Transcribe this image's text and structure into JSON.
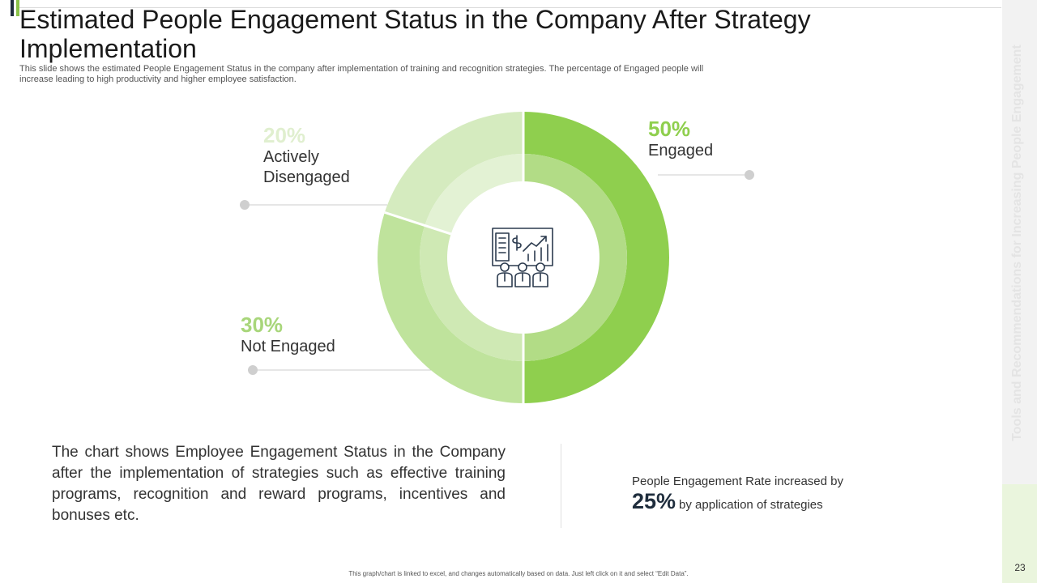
{
  "slide": {
    "title": "Estimated People Engagement Status in the Company After Strategy Implementation",
    "subtitle": "This slide shows the estimated People Engagement Status in the company after implementation of training and recognition strategies. The percentage of Engaged people will increase leading to high productivity and higher employee satisfaction.",
    "side_title": "Tools and Recommendations for Increasing People Engagement",
    "page_number": "23",
    "footnote": "This graph/chart is linked to excel, and changes automatically based on data. Just left click on it and select “Edit Data”."
  },
  "chart_data": {
    "type": "pie",
    "variant": "donut",
    "categories": [
      "Engaged",
      "Not Engaged",
      "Actively Disengaged"
    ],
    "values": [
      50,
      30,
      20
    ],
    "value_labels": [
      "50%",
      "30%",
      "20%"
    ],
    "unit": "%",
    "colors": {
      "outer": [
        "#8fcf4e",
        "#bfe39c",
        "#d5ebbf"
      ],
      "inner": [
        "#b2dc86",
        "#cfe9b4",
        "#e3f2d4"
      ],
      "labels": [
        "#8fcf4e",
        "#a8d67a",
        "#e0efcf"
      ]
    },
    "center_icon": "business-presentation-icon"
  },
  "summary": {
    "text": "The chart shows Employee Engagement  Status in the Company  after the implementation  of strategies such as effective training programs,  recognition and reward programs,  incentives and bonuses etc.",
    "rate_line1": "People Engagement Rate increased by",
    "rate_value": "25%",
    "rate_suffix": "by application of strategies"
  },
  "colors": {
    "accent_dark": "#1f2d3d",
    "accent_green": "#8bc34a",
    "side_panel": "#f2f2f2"
  }
}
